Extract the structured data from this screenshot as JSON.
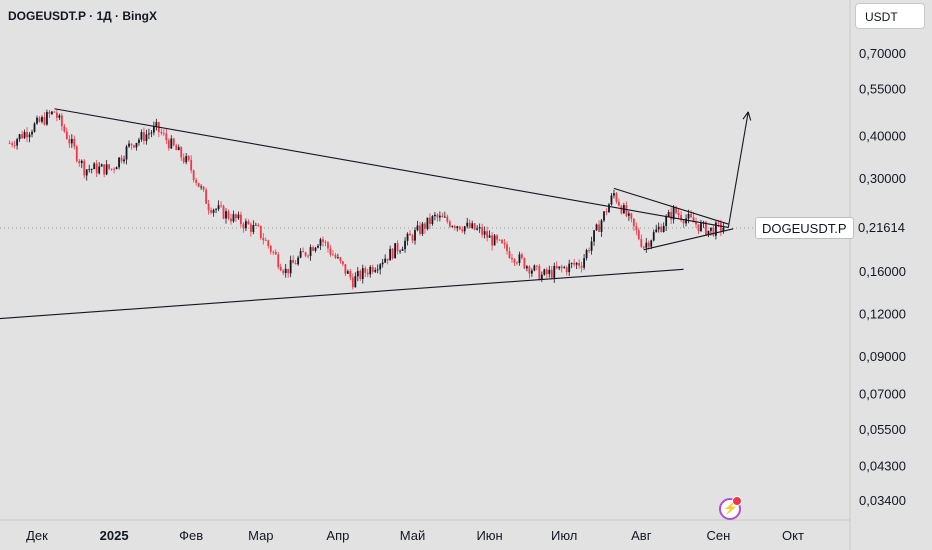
{
  "header": {
    "symbol": "DOGEUSDT.P · 1Д · BingX"
  },
  "price_axis": {
    "currency": "USDT"
  },
  "last_price": {
    "label": "DOGEUSDT.P",
    "value": "0,21614"
  },
  "colors": {
    "up": "#131722",
    "down": "#f23645",
    "background": "#e2e2e2"
  },
  "icons": {
    "badge": "lightning-icon"
  },
  "chart_data": {
    "type": "candlestick",
    "y_scale": "log",
    "y_ticks": [
      "0,70000",
      "0,55000",
      "0,40000",
      "0,30000",
      "0,16000",
      "0,12000",
      "0,09000",
      "0,07000",
      "0,05500",
      "0,04300",
      "0,03400"
    ],
    "x_ticks": [
      "Дек",
      "2025",
      "Фев",
      "Мар",
      "Апр",
      "Май",
      "Июн",
      "Июл",
      "Авг",
      "Сен",
      "Окт"
    ],
    "approx_daily_closes": [
      {
        "date": "2024-11-20",
        "close": 0.38
      },
      {
        "date": "2024-12-08",
        "close": 0.47
      },
      {
        "date": "2024-12-20",
        "close": 0.32
      },
      {
        "date": "2024-12-31",
        "close": 0.32
      },
      {
        "date": "2025-01-08",
        "close": 0.38
      },
      {
        "date": "2025-01-18",
        "close": 0.42
      },
      {
        "date": "2025-01-31",
        "close": 0.33
      },
      {
        "date": "2025-02-08",
        "close": 0.25
      },
      {
        "date": "2025-02-28",
        "close": 0.21
      },
      {
        "date": "2025-03-11",
        "close": 0.16
      },
      {
        "date": "2025-03-25",
        "close": 0.2
      },
      {
        "date": "2025-04-07",
        "close": 0.15
      },
      {
        "date": "2025-04-22",
        "close": 0.18
      },
      {
        "date": "2025-05-10",
        "close": 0.23
      },
      {
        "date": "2025-05-28",
        "close": 0.21
      },
      {
        "date": "2025-06-22",
        "close": 0.155
      },
      {
        "date": "2025-07-08",
        "close": 0.17
      },
      {
        "date": "2025-07-21",
        "close": 0.27
      },
      {
        "date": "2025-08-02",
        "close": 0.19
      },
      {
        "date": "2025-08-14",
        "close": 0.24
      },
      {
        "date": "2025-08-28",
        "close": 0.21
      },
      {
        "date": "2025-09-03",
        "close": 0.216
      }
    ],
    "drawings": [
      {
        "kind": "descending-trendline",
        "from": {
          "date": "2024-12-08",
          "price": 0.48
        },
        "to": {
          "date": "2025-09-05",
          "price": 0.215
        }
      },
      {
        "kind": "ascending-trendline",
        "from": {
          "date": "2024-10-25",
          "price": 0.113
        },
        "to": {
          "date": "2025-08-18",
          "price": 0.162
        }
      },
      {
        "kind": "triangle-upper",
        "from": {
          "date": "2025-07-21",
          "price": 0.28
        },
        "to": {
          "date": "2025-09-05",
          "price": 0.22
        }
      },
      {
        "kind": "triangle-lower",
        "from": {
          "date": "2025-08-02",
          "price": 0.185
        },
        "to": {
          "date": "2025-09-07",
          "price": 0.213
        }
      },
      {
        "kind": "projection-arrow",
        "from": {
          "date": "2025-09-05",
          "price": 0.215
        },
        "to": {
          "date": "2025-09-13",
          "price": 0.47
        }
      }
    ]
  }
}
